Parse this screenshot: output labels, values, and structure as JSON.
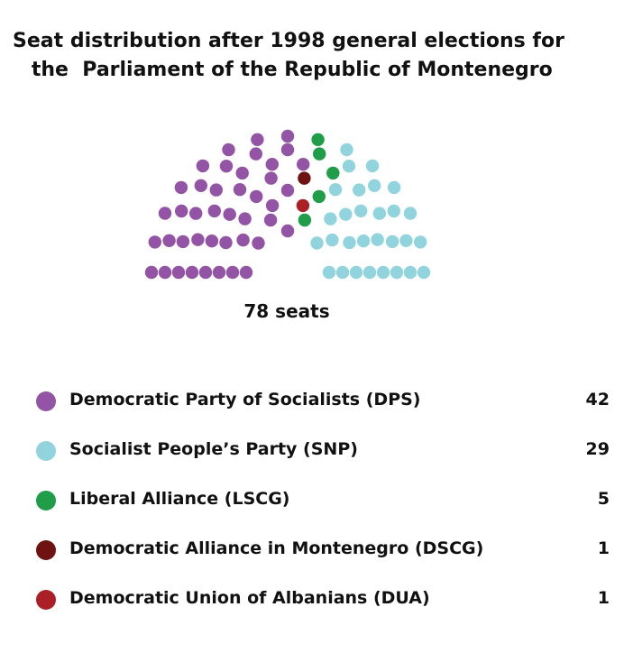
{
  "chart_data": {
    "type": "parliament",
    "title": [
      "Seat distribution after 1998 general elections for",
      " the  Parliament of the Republic of Montenegro"
    ],
    "total_label": "78 seats",
    "total": 78,
    "parties": [
      {
        "name": "Democratic Party of Socialists (DPS)",
        "seats": 42,
        "color": "#9354a5"
      },
      {
        "name": "Democratic Alliance in Montenegro (DSCG)",
        "seats": 1,
        "color": "#6e1212"
      },
      {
        "name": "Democratic Union of Albanians (DUA)",
        "seats": 1,
        "color": "#ab1f27"
      },
      {
        "name": "Liberal Alliance (LSCG)",
        "seats": 5,
        "color": "#1f9d49"
      },
      {
        "name": "Socialist People’s Party (SNP)",
        "seats": 29,
        "color": "#92d4de"
      }
    ],
    "legend": [
      {
        "name": "Democratic Party of Socialists (DPS)",
        "value": "42",
        "color": "#9354a5"
      },
      {
        "name": "Socialist People’s Party (SNP)",
        "value": "29",
        "color": "#92d4de"
      },
      {
        "name": "Liberal Alliance (LSCG)",
        "value": "5",
        "color": "#1f9d49"
      },
      {
        "name": "Democratic Alliance in Montenegro (DSCG)",
        "value": "1",
        "color": "#6e1212"
      },
      {
        "name": "Democratic Union of Albanians (DUA)",
        "value": "1",
        "color": "#ab1f27"
      }
    ]
  }
}
